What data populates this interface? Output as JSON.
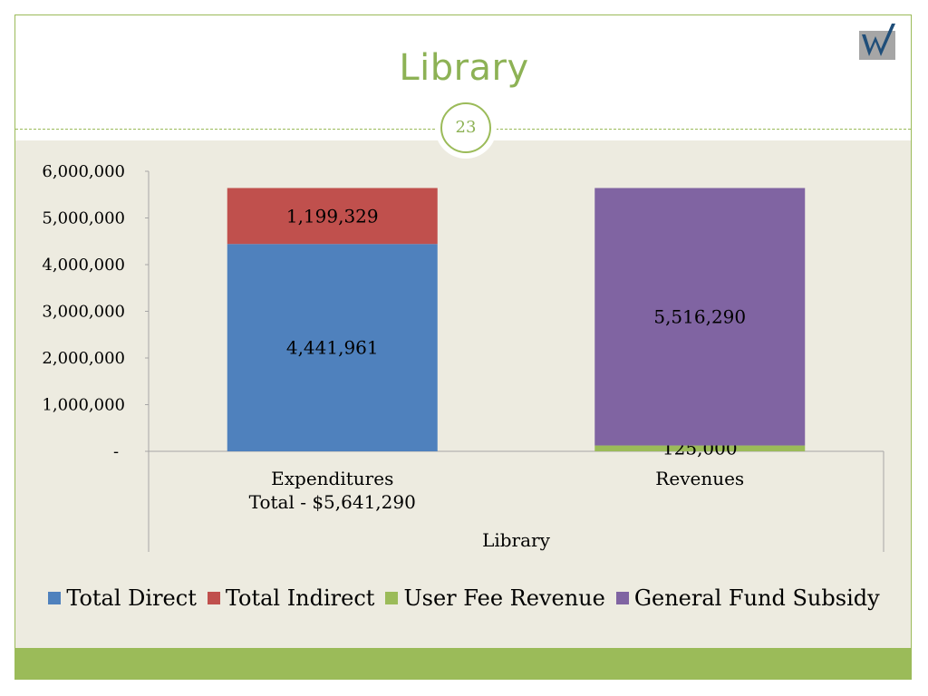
{
  "slide": {
    "title": "Library",
    "page_number": "23"
  },
  "logo": {
    "icon": "w-logo-icon",
    "colors": {
      "background": "#A6A6A6",
      "letter": "#1F4E79"
    }
  },
  "colors": {
    "accent": "#9BBB59",
    "title": "#8DB255",
    "body_background": "#EDEBE0"
  },
  "chart_data": {
    "type": "bar",
    "stacked": true,
    "categories": [
      [
        "Expenditures",
        "Total - $5,641,290"
      ],
      [
        "Revenues"
      ]
    ],
    "xlabel": "Library",
    "ylabel": "",
    "ylim": [
      0,
      6000000
    ],
    "yticks": [
      {
        "value": 0,
        "label": "-"
      },
      {
        "value": 1000000,
        "label": "1,000,000"
      },
      {
        "value": 2000000,
        "label": "2,000,000"
      },
      {
        "value": 3000000,
        "label": "3,000,000"
      },
      {
        "value": 4000000,
        "label": "4,000,000"
      },
      {
        "value": 5000000,
        "label": "5,000,000"
      },
      {
        "value": 6000000,
        "label": "6,000,000"
      }
    ],
    "grid": false,
    "legend_position": "bottom",
    "series": [
      {
        "name": "Total Direct",
        "color": "#4F81BD",
        "values": [
          4441961,
          0
        ],
        "labels": [
          "4,441,961",
          ""
        ]
      },
      {
        "name": "Total Indirect",
        "color": "#C0504D",
        "values": [
          1199329,
          0
        ],
        "labels": [
          "1,199,329",
          ""
        ]
      },
      {
        "name": "User Fee Revenue",
        "color": "#9BBB59",
        "values": [
          0,
          125000
        ],
        "labels": [
          "",
          "125,000"
        ]
      },
      {
        "name": "General Fund Subsidy",
        "color": "#8064A2",
        "values": [
          0,
          5516290
        ],
        "labels": [
          "",
          "5,516,290"
        ]
      }
    ]
  }
}
